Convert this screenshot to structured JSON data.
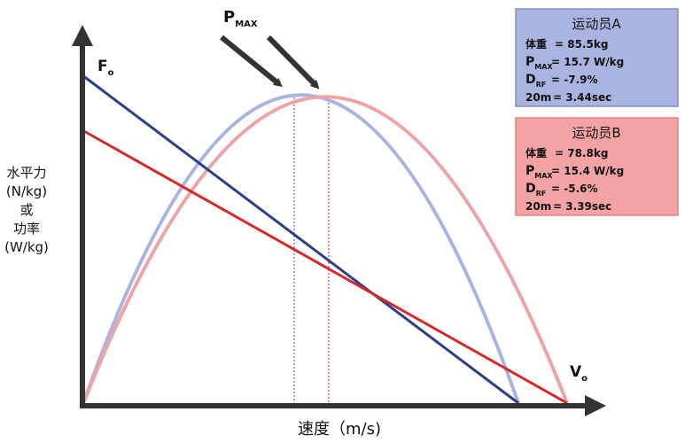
{
  "pmax_label": {
    "main": "P",
    "sub": "MAX"
  },
  "y_axis": {
    "force_label": {
      "main": "F",
      "sub": "o"
    },
    "title_lines": [
      "水平力",
      "(N/kg)",
      "或",
      "功率",
      "(W/kg)"
    ]
  },
  "x_axis": {
    "velocity_label": {
      "main": "V",
      "sub": "o"
    },
    "title": "速度（m/s)"
  },
  "athletes": [
    {
      "name": "运动员A",
      "rows": [
        {
          "label": "体重",
          "value": "= 85.5kg"
        },
        {
          "label": "P",
          "sub": "MAX",
          "value": "= 15.7 W/kg"
        },
        {
          "label": "D",
          "sub": "RF",
          "value": "= -7.9%"
        },
        {
          "label": "20m",
          "value": "= 3.44sec"
        }
      ]
    },
    {
      "name": "运动员B",
      "rows": [
        {
          "label": "体重",
          "value": "= 78.8kg"
        },
        {
          "label": "P",
          "sub": "MAX",
          "value": "= 15.4 W/kg"
        },
        {
          "label": "D",
          "sub": "RF",
          "value": "= -5.6%"
        },
        {
          "label": "20m",
          "value": "= 3.39sec"
        }
      ]
    }
  ]
}
